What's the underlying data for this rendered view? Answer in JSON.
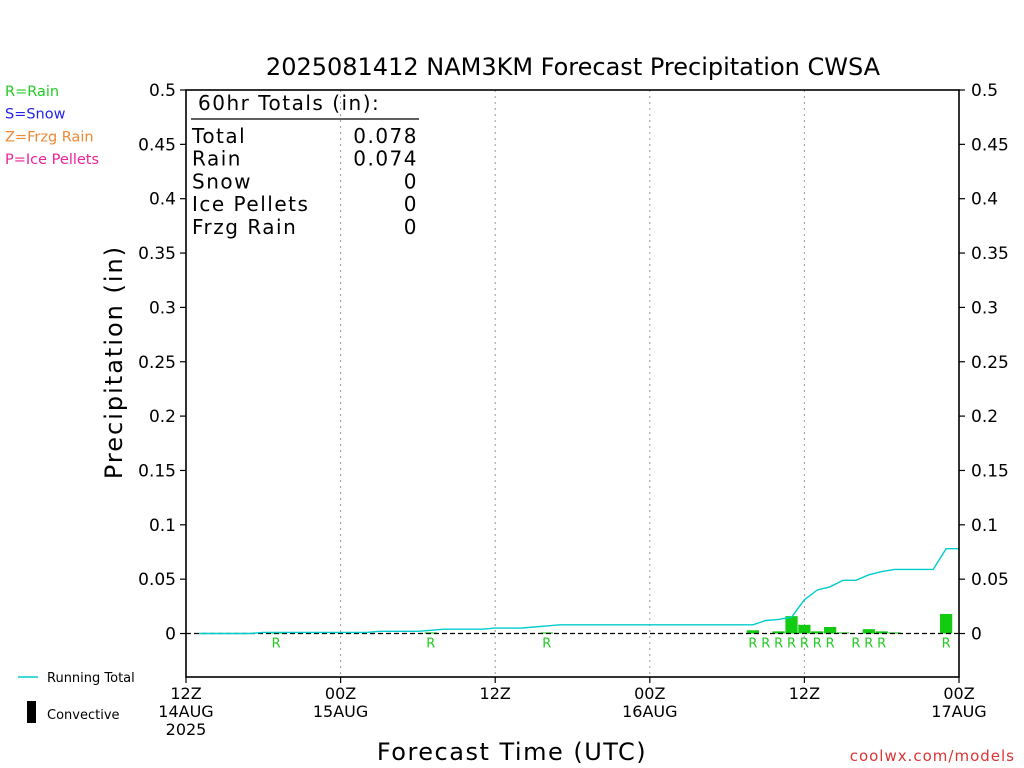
{
  "legend_types": [
    {
      "label": "R=Rain",
      "color": "#22cc22"
    },
    {
      "label": "S=Snow",
      "color": "#2222ee"
    },
    {
      "label": "Z=Frzg Rain",
      "color": "#ee8833"
    },
    {
      "label": "P=Ice Pellets",
      "color": "#ee2299"
    }
  ],
  "totals": {
    "header": "60hr Totals (in):",
    "rows": [
      {
        "label": "Total",
        "value": "0.078"
      },
      {
        "label": "Rain",
        "value": "0.074"
      },
      {
        "label": "Snow",
        "value": "0"
      },
      {
        "label": "Ice Pellets",
        "value": "0"
      },
      {
        "label": "Frzg Rain",
        "value": "0"
      }
    ]
  },
  "bottom_legend": {
    "running_total_label": "Running Total",
    "convective_label": "Convective"
  },
  "watermark": "coolwx.com/models",
  "colors": {
    "running_total": "#00cccc",
    "bars": "#11cc11",
    "rain_marker": "#22cc22"
  },
  "chart_data": {
    "type": "bar",
    "title": "2025081412 NAM3KM Forecast Precipitation CWSA",
    "xlabel": "Forecast Time (UTC)",
    "ylabel": "Precipitation (in)",
    "ylim": [
      -0.04,
      0.5
    ],
    "yticks": [
      0,
      0.05,
      0.1,
      0.15,
      0.2,
      0.25,
      0.3,
      0.35,
      0.4,
      0.45,
      0.5
    ],
    "ytick_labels": [
      "0",
      "0.05",
      "0.1",
      "0.15",
      "0.2",
      "0.25",
      "0.3",
      "0.35",
      "0.4",
      "0.45",
      "0.5"
    ],
    "xlim_hours": [
      0,
      60
    ],
    "xticks": [
      {
        "hour": 0,
        "lines": [
          "12Z",
          "14AUG",
          "2025"
        ]
      },
      {
        "hour": 12,
        "lines": [
          "00Z",
          "15AUG"
        ]
      },
      {
        "hour": 24,
        "lines": [
          "12Z"
        ]
      },
      {
        "hour": 36,
        "lines": [
          "00Z",
          "16AUG"
        ]
      },
      {
        "hour": 48,
        "lines": [
          "12Z"
        ]
      },
      {
        "hour": 60,
        "lines": [
          "00Z",
          "17AUG"
        ]
      }
    ],
    "grid": "vertical dotted at 00Z/12Z",
    "series": [
      {
        "name": "Running Total",
        "type": "line",
        "x": [
          1,
          2,
          3,
          4,
          5,
          6,
          7,
          8,
          9,
          10,
          11,
          12,
          13,
          14,
          15,
          16,
          17,
          18,
          19,
          20,
          21,
          22,
          23,
          24,
          25,
          26,
          27,
          28,
          29,
          30,
          31,
          32,
          33,
          34,
          35,
          36,
          37,
          38,
          39,
          40,
          41,
          42,
          43,
          44,
          45,
          46,
          47,
          48,
          49,
          50,
          51,
          52,
          53,
          54,
          55,
          56,
          57,
          58,
          59,
          60
        ],
        "values": [
          0,
          0,
          0,
          0,
          0,
          0.001,
          0.001,
          0.001,
          0.001,
          0.001,
          0.001,
          0.001,
          0.001,
          0.001,
          0.002,
          0.002,
          0.002,
          0.002,
          0.003,
          0.004,
          0.004,
          0.004,
          0.004,
          0.005,
          0.005,
          0.005,
          0.006,
          0.007,
          0.008,
          0.008,
          0.008,
          0.008,
          0.008,
          0.008,
          0.008,
          0.008,
          0.008,
          0.008,
          0.008,
          0.008,
          0.008,
          0.008,
          0.008,
          0.008,
          0.012,
          0.013,
          0.015,
          0.031,
          0.04,
          0.043,
          0.049,
          0.049,
          0.054,
          0.057,
          0.059,
          0.059,
          0.059,
          0.059,
          0.078,
          0.078
        ]
      },
      {
        "name": "Convective",
        "type": "bar",
        "x": [
          7,
          19,
          28,
          44,
          46,
          47,
          48,
          49,
          50,
          51,
          53,
          54,
          55,
          59
        ],
        "values": [
          0.001,
          0.001,
          0.001,
          0.003,
          0.002,
          0.016,
          0.008,
          0.002,
          0.006,
          0.001,
          0.004,
          0.002,
          0.001,
          0.018
        ]
      }
    ],
    "ptype_markers": {
      "label": "R",
      "x": [
        7,
        19,
        28,
        44,
        45,
        46,
        47,
        48,
        49,
        50,
        52,
        53,
        54,
        59
      ]
    }
  }
}
